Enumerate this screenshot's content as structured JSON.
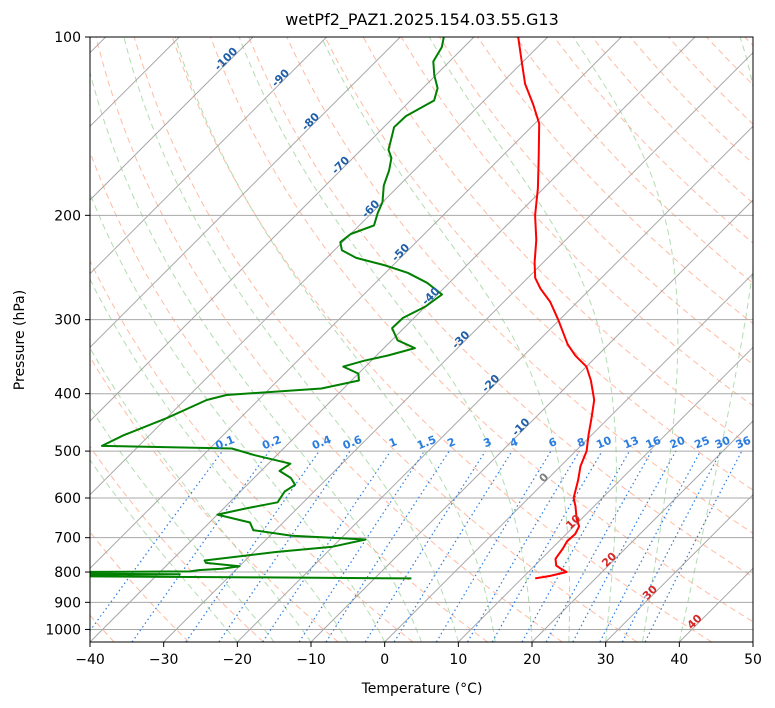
{
  "chart_data": {
    "type": "line",
    "title": "wetPf2_PAZ1.2025.154.03.55.G13",
    "xlabel": "Temperature (°C)",
    "ylabel": "Pressure (hPa)",
    "xlim": [
      -40,
      50
    ],
    "ylim": [
      1050,
      100
    ],
    "y_scale": "log",
    "skew": true,
    "grid": true,
    "x_ticks": [
      -40,
      -30,
      -20,
      -10,
      0,
      10,
      20,
      30,
      40,
      50
    ],
    "y_ticks": [
      100,
      200,
      300,
      400,
      500,
      600,
      700,
      800,
      900,
      1000
    ],
    "series": [
      {
        "role": "temperature",
        "color": "#ff0000",
        "points": [
          [
            820,
            11.8
          ],
          [
            812,
            13.5
          ],
          [
            800,
            15.2
          ],
          [
            790,
            14.0
          ],
          [
            780,
            12.9
          ],
          [
            760,
            11.9
          ],
          [
            730,
            11.5
          ],
          [
            710,
            11.1
          ],
          [
            690,
            11.2
          ],
          [
            670,
            10.7
          ],
          [
            650,
            9.3
          ],
          [
            620,
            7.5
          ],
          [
            600,
            6.1
          ],
          [
            560,
            4.3
          ],
          [
            530,
            2.7
          ],
          [
            500,
            1.5
          ],
          [
            470,
            -0.4
          ],
          [
            440,
            -2.3
          ],
          [
            410,
            -4.4
          ],
          [
            380,
            -7.5
          ],
          [
            360,
            -10.0
          ],
          [
            345,
            -13.0
          ],
          [
            330,
            -15.6
          ],
          [
            300,
            -20.2
          ],
          [
            280,
            -23.7
          ],
          [
            266,
            -26.8
          ],
          [
            255,
            -29.0
          ],
          [
            240,
            -31.2
          ],
          [
            220,
            -34.0
          ],
          [
            200,
            -37.5
          ],
          [
            180,
            -40.8
          ],
          [
            160,
            -44.8
          ],
          [
            140,
            -49.4
          ],
          [
            130,
            -52.8
          ],
          [
            120,
            -56.7
          ],
          [
            110,
            -60.2
          ],
          [
            100,
            -64.0
          ]
        ]
      },
      {
        "role": "dewpoint",
        "color": "#008000",
        "points": [
          [
            820,
            -5.0
          ],
          [
            817,
            -25.0
          ],
          [
            812,
            -62.0
          ],
          [
            807,
            -37.0
          ],
          [
            802,
            -72.0
          ],
          [
            798,
            -36.0
          ],
          [
            794,
            -35.0
          ],
          [
            790,
            -32.0
          ],
          [
            782,
            -30.0
          ],
          [
            772,
            -35.0
          ],
          [
            765,
            -35.5
          ],
          [
            740,
            -27.0
          ],
          [
            725,
            -20.0
          ],
          [
            705,
            -16.5
          ],
          [
            695,
            -27.0
          ],
          [
            680,
            -33.0
          ],
          [
            660,
            -34.5
          ],
          [
            640,
            -40.0
          ],
          [
            625,
            -37.0
          ],
          [
            610,
            -33.5
          ],
          [
            585,
            -34.0
          ],
          [
            570,
            -33.5
          ],
          [
            555,
            -35.0
          ],
          [
            540,
            -37.5
          ],
          [
            525,
            -37.0
          ],
          [
            508,
            -43.0
          ],
          [
            495,
            -47.0
          ],
          [
            490,
            -65.0
          ],
          [
            470,
            -63.5
          ],
          [
            440,
            -60.0
          ],
          [
            410,
            -57.0
          ],
          [
            402,
            -55.0
          ],
          [
            392,
            -43.0
          ],
          [
            380,
            -39.0
          ],
          [
            370,
            -40.0
          ],
          [
            360,
            -43.0
          ],
          [
            352,
            -41.0
          ],
          [
            345,
            -38.5
          ],
          [
            335,
            -35.8
          ],
          [
            325,
            -39.2
          ],
          [
            310,
            -41.6
          ],
          [
            298,
            -41.5
          ],
          [
            285,
            -40.0
          ],
          [
            272,
            -39.4
          ],
          [
            260,
            -43.0
          ],
          [
            250,
            -47.0
          ],
          [
            243,
            -51.0
          ],
          [
            236,
            -56.0
          ],
          [
            229,
            -59.0
          ],
          [
            222,
            -60.3
          ],
          [
            215,
            -60.0
          ],
          [
            208,
            -58.0
          ],
          [
            198,
            -59.2
          ],
          [
            190,
            -60.0
          ],
          [
            178,
            -62.1
          ],
          [
            168,
            -63.4
          ],
          [
            160,
            -64.8
          ],
          [
            155,
            -66.3
          ],
          [
            148,
            -67.5
          ],
          [
            142,
            -68.6
          ],
          [
            136,
            -68.5
          ],
          [
            128,
            -66.8
          ],
          [
            122,
            -68.0
          ],
          [
            116,
            -70.2
          ],
          [
            110,
            -72.2
          ],
          [
            104,
            -73.0
          ],
          [
            100,
            -74.1
          ]
        ]
      }
    ],
    "isotherm_labels": [
      "-100",
      "-90",
      "-80",
      "-70",
      "-60",
      "-50",
      "-40",
      "-30",
      "-20",
      "-10",
      "0",
      "10",
      "20",
      "30",
      "40"
    ],
    "mixing_ratio_labels": [
      "0.1",
      "0.2",
      "0.4",
      "0.6",
      "1",
      "1.5",
      "2",
      "3",
      "4",
      "6",
      "8",
      "10",
      "13",
      "16",
      "20",
      "25",
      "30",
      "36"
    ],
    "colors": {
      "temperature": "#ff0000",
      "dewpoint": "#008000",
      "isotherms": "#a8a8a8",
      "dry_adiabats": "#ff9e7a",
      "moist_adiabats": "#9fd39f",
      "mixing_ratio": "#2a7de0",
      "isotherm_label_cold": "#1f5fa8",
      "isotherm_label_warm": "#d62728",
      "isotherm_label_zero": "#7f7f7f"
    }
  }
}
